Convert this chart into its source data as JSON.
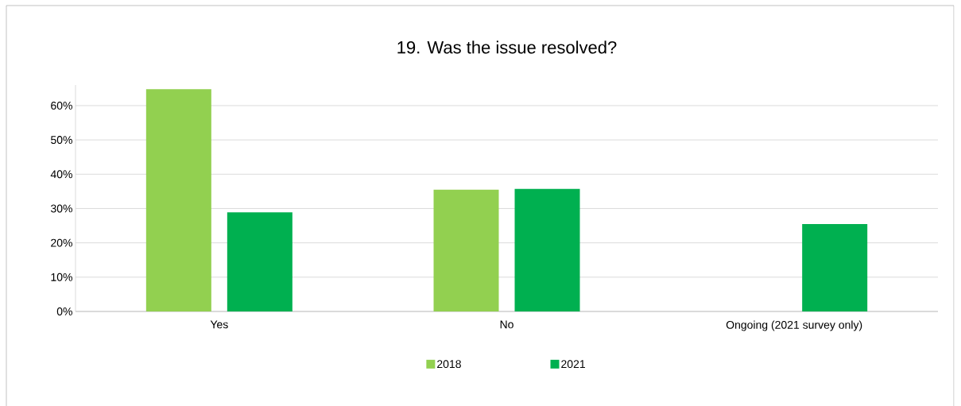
{
  "chart_data": {
    "type": "bar",
    "title": "19. Was the issue resolved?",
    "categories": [
      "Yes",
      "No",
      "Ongoing (2021 survey only)"
    ],
    "series": [
      {
        "name": "2018",
        "color": "#92d050",
        "values": [
          64.8,
          35.5,
          null
        ]
      },
      {
        "name": "2021",
        "color": "#00b050",
        "values": [
          28.9,
          35.7,
          25.5
        ]
      }
    ],
    "ylim": [
      0,
      66
    ],
    "yticks": [
      {
        "value": 0,
        "label": "0%"
      },
      {
        "value": 10,
        "label": "10%"
      },
      {
        "value": 20,
        "label": "20%"
      },
      {
        "value": 30,
        "label": "30%"
      },
      {
        "value": 40,
        "label": "40%"
      },
      {
        "value": 50,
        "label": "50%"
      },
      {
        "value": 60,
        "label": "60%"
      }
    ],
    "grid": "y",
    "legend": "bottom"
  }
}
